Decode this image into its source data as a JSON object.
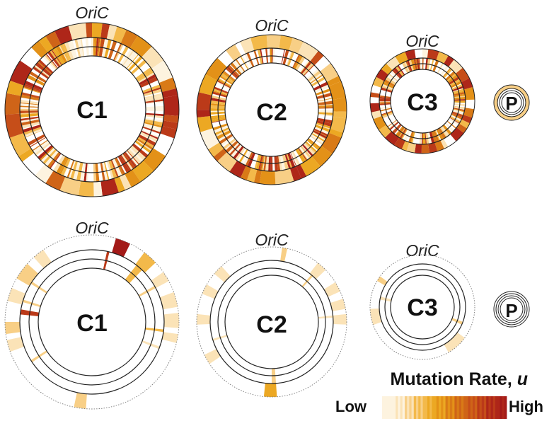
{
  "figure": {
    "panels": [
      {
        "id": "top",
        "chromosomes": [
          {
            "id": "C1",
            "label": "C1",
            "origin_label": "OriC"
          },
          {
            "id": "C2",
            "label": "C2",
            "origin_label": "OriC"
          },
          {
            "id": "C3",
            "label": "C3",
            "origin_label": "OriC"
          },
          {
            "id": "P",
            "label": "P"
          }
        ]
      },
      {
        "id": "bottom",
        "chromosomes": [
          {
            "id": "C1",
            "label": "C1",
            "origin_label": "OriC"
          },
          {
            "id": "C2",
            "label": "C2",
            "origin_label": "OriC"
          },
          {
            "id": "C3",
            "label": "C3",
            "origin_label": "OriC"
          },
          {
            "id": "P",
            "label": "P"
          }
        ]
      }
    ],
    "legend": {
      "title": "Mutation Rate, u",
      "title_main": "Mutation Rate, ",
      "title_var": "u",
      "low_label": "Low",
      "high_label": "High",
      "scale_colors": [
        "#fdf3df",
        "#fbe3b7",
        "#f8cf86",
        "#f3b94a",
        "#eca823",
        "#e39118",
        "#d97a17",
        "#cf6418",
        "#c64e19",
        "#bb3a19",
        "#ae2619",
        "#a31a18"
      ]
    },
    "colors": {
      "ring_stroke": "#222222",
      "low": "#fdf3df",
      "high": "#a31a18"
    }
  }
}
